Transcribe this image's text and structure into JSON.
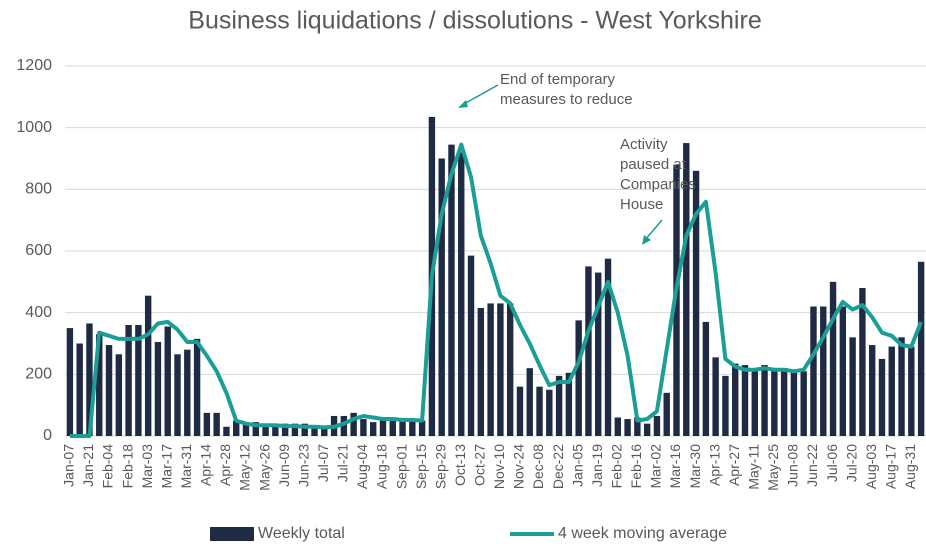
{
  "chart_data": {
    "type": "bar_line",
    "title": "Business liquidations / dissolutions - West Yorkshire",
    "categories": [
      "Jan-07",
      null,
      "Jan-21",
      null,
      "Feb-04",
      null,
      "Feb-18",
      null,
      "Mar-03",
      null,
      "Mar-17",
      null,
      "Mar-31",
      null,
      "Apr-14",
      null,
      "Apr-28",
      null,
      "May-12",
      null,
      "May-26",
      null,
      "Jun-09",
      null,
      "Jun-23",
      null,
      "Jul-07",
      null,
      "Jul-21",
      null,
      "Aug-04",
      null,
      "Aug-18",
      null,
      "Sep-01",
      null,
      "Sep-15",
      null,
      "Sep-29",
      null,
      "Oct-13",
      null,
      "Oct-27",
      null,
      "Nov-10",
      null,
      "Nov-24",
      null,
      "Dec-08",
      null,
      "Dec-22",
      null,
      "Jan-05",
      null,
      "Jan-19",
      null,
      "Feb-02",
      null,
      "Feb-16",
      null,
      "Mar-02",
      null,
      "Mar-16",
      null,
      "Mar-30",
      null,
      "Apr-13",
      null,
      "Apr-27",
      null,
      "May-11",
      null,
      "May-25",
      null,
      "Jun-08",
      null,
      "Jun-22",
      null,
      "Jul-06",
      null,
      "Jul-20",
      null,
      "Aug-03",
      null,
      "Aug-17",
      null,
      "Aug-31",
      null
    ],
    "series": [
      {
        "name": "Weekly total",
        "type": "bar",
        "color": "#1f2a44",
        "values": [
          350,
          300,
          365,
          330,
          295,
          265,
          360,
          360,
          455,
          305,
          355,
          265,
          280,
          315,
          75,
          75,
          30,
          50,
          40,
          45,
          35,
          35,
          40,
          40,
          40,
          35,
          30,
          65,
          65,
          75,
          55,
          45,
          60,
          60,
          55,
          55,
          50,
          1035,
          900,
          945,
          920,
          585,
          415,
          430,
          430,
          430,
          160,
          220,
          160,
          150,
          195,
          205,
          375,
          550,
          530,
          575,
          60,
          55,
          60,
          40,
          65,
          140,
          880,
          950,
          860,
          370,
          255,
          195,
          235,
          230,
          220,
          230,
          220,
          220,
          210,
          210,
          420,
          420,
          500,
          420,
          320,
          480,
          295,
          250,
          290,
          320,
          290,
          565
        ]
      },
      {
        "name": "4 week moving average",
        "type": "line",
        "color": "#1a9e96",
        "values": [
          0,
          0,
          0,
          335,
          325,
          315,
          315,
          315,
          330,
          365,
          370,
          345,
          305,
          305,
          260,
          210,
          140,
          50,
          40,
          35,
          35,
          35,
          32,
          32,
          30,
          30,
          28,
          30,
          40,
          55,
          65,
          60,
          55,
          55,
          52,
          52,
          50,
          520,
          720,
          850,
          945,
          840,
          650,
          560,
          455,
          430,
          360,
          300,
          230,
          165,
          175,
          175,
          240,
          340,
          420,
          500,
          400,
          260,
          50,
          55,
          80,
          280,
          480,
          650,
          720,
          760,
          530,
          250,
          225,
          215,
          215,
          220,
          215,
          215,
          210,
          215,
          265,
          320,
          380,
          435,
          410,
          425,
          385,
          335,
          325,
          295,
          290,
          370
        ]
      }
    ],
    "ylim": [
      0,
      1200
    ],
    "yticks": [
      0,
      200,
      400,
      600,
      800,
      1000,
      1200
    ],
    "grid": true,
    "annotations": [
      "End of temporary",
      "measures to reduce",
      "Activity",
      "paused at",
      "Companies",
      "House"
    ]
  }
}
